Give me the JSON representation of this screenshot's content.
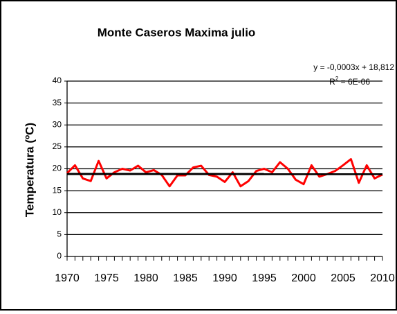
{
  "chart_data": {
    "type": "line",
    "title": "Monte Caseros Maxima julio",
    "y_label": "Temperatura (ºC)",
    "x": [
      1970,
      1971,
      1972,
      1973,
      1974,
      1975,
      1976,
      1977,
      1978,
      1979,
      1980,
      1981,
      1982,
      1983,
      1984,
      1985,
      1986,
      1987,
      1988,
      1989,
      1990,
      1991,
      1992,
      1993,
      1994,
      1995,
      1996,
      1997,
      1998,
      1999,
      2000,
      2001,
      2002,
      2003,
      2004,
      2005,
      2006,
      2007,
      2008,
      2009,
      2010
    ],
    "series": [
      {
        "color": "#ff0000",
        "values": [
          19.0,
          20.8,
          17.8,
          17.2,
          21.8,
          17.8,
          19.2,
          20.0,
          19.6,
          20.7,
          19.2,
          19.7,
          18.6,
          16.0,
          18.5,
          18.5,
          20.3,
          20.7,
          18.6,
          18.2,
          17.0,
          19.2,
          16.0,
          17.2,
          19.5,
          20.0,
          19.2,
          21.5,
          20.0,
          17.5,
          16.5,
          20.8,
          18.2,
          18.8,
          19.5,
          20.8,
          22.2,
          16.8,
          20.8,
          17.8,
          18.7
        ]
      }
    ],
    "trendline": {
      "slope": -0.0003,
      "intercept": 18.812,
      "color": "#000000",
      "equation": "y = -0,0003x + 18,812",
      "r2_symbol": "R",
      "r2_power": "2",
      "r2_text": " = 6E-06"
    },
    "xlim": [
      1970,
      2010
    ],
    "xticks": [
      1970,
      1975,
      1980,
      1985,
      1990,
      1995,
      2000,
      2005,
      2010
    ],
    "ylim": [
      0,
      40
    ],
    "yticks": [
      0,
      5,
      10,
      15,
      20,
      25,
      30,
      35,
      40
    ],
    "grid": true
  }
}
